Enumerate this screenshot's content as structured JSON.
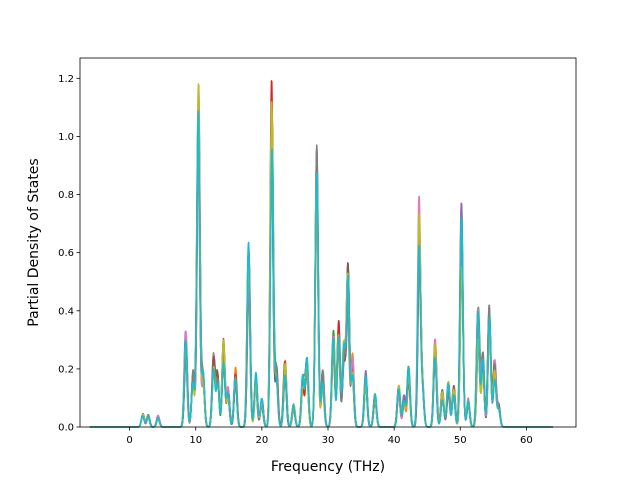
{
  "chart_data": {
    "type": "line",
    "title": "",
    "xlabel": "Frequency (THz)",
    "ylabel": "Partial Density of States",
    "xlim": [
      -7.5,
      67.5
    ],
    "ylim": [
      0,
      1.27
    ],
    "xticks": [
      0,
      10,
      20,
      30,
      40,
      50,
      60
    ],
    "xtick_labels": [
      "0",
      "10",
      "20",
      "30",
      "40",
      "50",
      "60"
    ],
    "yticks": [
      0.0,
      0.2,
      0.4,
      0.6,
      0.8,
      1.0,
      1.2
    ],
    "ytick_labels": [
      "0.0",
      "0.2",
      "0.4",
      "0.6",
      "0.8",
      "1.0",
      "1.2"
    ],
    "grid": false,
    "legend": "none",
    "x_range": [
      -6,
      64
    ],
    "series_colors": [
      "#1f77b4",
      "#ff7f0e",
      "#2ca02c",
      "#d62728",
      "#9467bd",
      "#8c564b",
      "#e377c2",
      "#7f7f7f",
      "#bcbd22",
      "#17becf"
    ],
    "peaks": [
      {
        "x": 2.0,
        "y": 0.05
      },
      {
        "x": 2.8,
        "y": 0.045
      },
      {
        "x": 4.3,
        "y": 0.04
      },
      {
        "x": 8.5,
        "y": 0.33
      },
      {
        "x": 9.6,
        "y": 0.2
      },
      {
        "x": 10.4,
        "y": 1.21
      },
      {
        "x": 11.1,
        "y": 0.2
      },
      {
        "x": 12.7,
        "y": 0.26
      },
      {
        "x": 13.3,
        "y": 0.2
      },
      {
        "x": 14.2,
        "y": 0.31
      },
      {
        "x": 14.9,
        "y": 0.14
      },
      {
        "x": 16.0,
        "y": 0.21
      },
      {
        "x": 18.0,
        "y": 0.65
      },
      {
        "x": 19.1,
        "y": 0.2
      },
      {
        "x": 20.0,
        "y": 0.1
      },
      {
        "x": 21.5,
        "y": 1.2
      },
      {
        "x": 22.2,
        "y": 0.22
      },
      {
        "x": 23.5,
        "y": 0.24
      },
      {
        "x": 24.8,
        "y": 0.08
      },
      {
        "x": 26.2,
        "y": 0.18
      },
      {
        "x": 26.8,
        "y": 0.25
      },
      {
        "x": 28.3,
        "y": 0.98
      },
      {
        "x": 29.2,
        "y": 0.2
      },
      {
        "x": 30.8,
        "y": 0.34
      },
      {
        "x": 31.6,
        "y": 0.37
      },
      {
        "x": 32.4,
        "y": 0.3
      },
      {
        "x": 33.0,
        "y": 0.57
      },
      {
        "x": 33.7,
        "y": 0.25
      },
      {
        "x": 35.7,
        "y": 0.2
      },
      {
        "x": 37.1,
        "y": 0.12
      },
      {
        "x": 40.7,
        "y": 0.15
      },
      {
        "x": 41.5,
        "y": 0.11
      },
      {
        "x": 42.2,
        "y": 0.21
      },
      {
        "x": 43.8,
        "y": 0.79
      },
      {
        "x": 44.3,
        "y": 0.15
      },
      {
        "x": 46.2,
        "y": 0.32
      },
      {
        "x": 47.3,
        "y": 0.13
      },
      {
        "x": 48.2,
        "y": 0.16
      },
      {
        "x": 49.0,
        "y": 0.15
      },
      {
        "x": 50.2,
        "y": 0.78
      },
      {
        "x": 51.2,
        "y": 0.1
      },
      {
        "x": 52.7,
        "y": 0.41
      },
      {
        "x": 53.4,
        "y": 0.26
      },
      {
        "x": 54.4,
        "y": 0.46
      },
      {
        "x": 55.2,
        "y": 0.23
      },
      {
        "x": 55.8,
        "y": 0.08
      }
    ]
  }
}
